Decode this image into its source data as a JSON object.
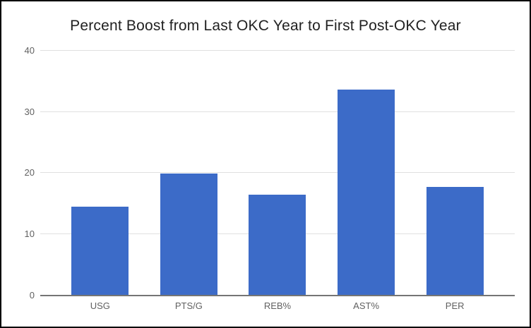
{
  "window": {
    "background_color": "#ffffff",
    "frame_border_color": "#000000"
  },
  "chart_data": {
    "type": "bar",
    "title": "Percent Boost from Last OKC Year to First Post-OKC Year",
    "categories": [
      "USG",
      "PTS/G",
      "REB%",
      "AST%",
      "PER"
    ],
    "values": [
      14.4,
      19.8,
      16.4,
      33.6,
      17.6
    ],
    "xlabel": "",
    "ylabel": "",
    "ylim": [
      0,
      40
    ],
    "yticks": [
      0,
      10,
      20,
      30,
      40
    ],
    "grid": true,
    "legend": false,
    "bar_color": "#3c6bc8",
    "gridline_color": "#e0e0e0",
    "axis_line_color": "#757575",
    "tick_label_color": "#616161",
    "category_label_color": "#616161",
    "title_color": "#212121"
  }
}
